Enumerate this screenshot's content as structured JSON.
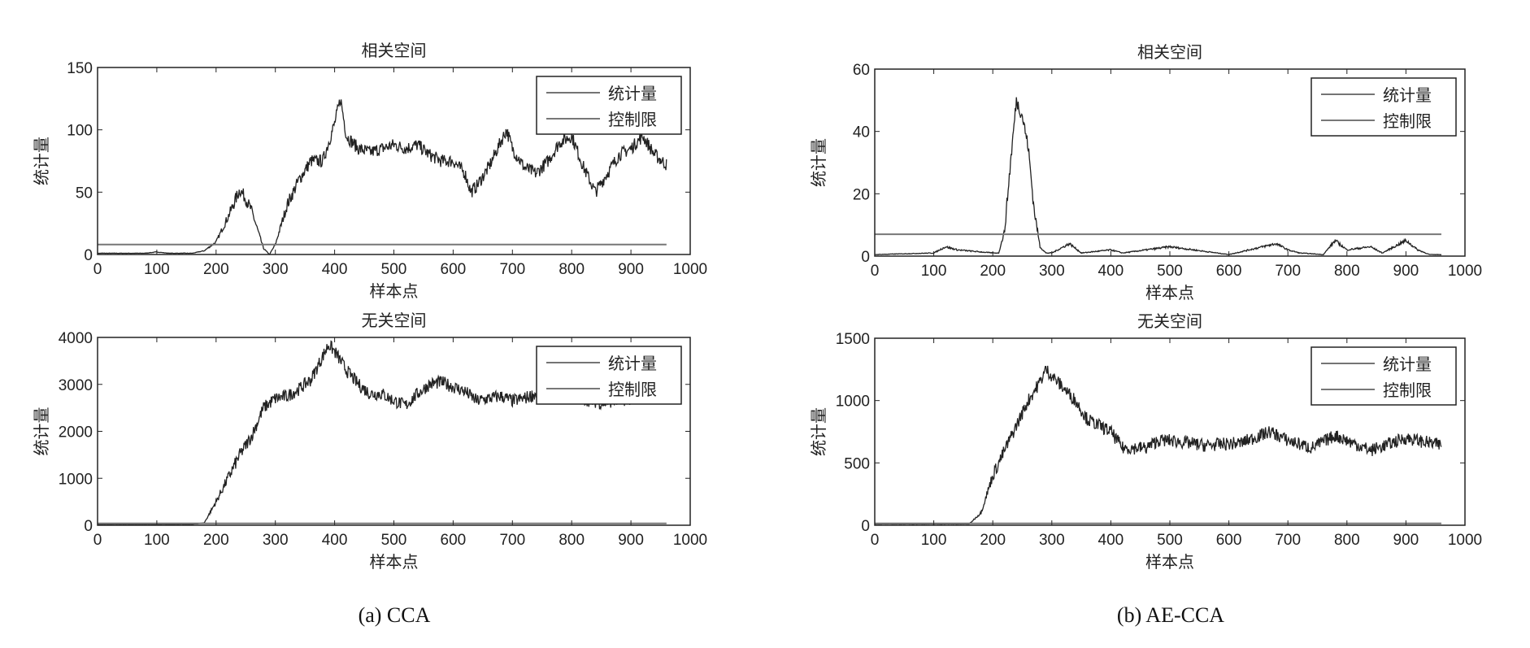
{
  "captions": [
    "(a) CCA",
    "(b) AE-CCA"
  ],
  "colors": {
    "statistic": "#222222",
    "limit": "#777777",
    "axes": "#222222"
  },
  "chart_data": [
    {
      "type": "line",
      "group": "(a) CCA",
      "title": "相关空间",
      "xlabel": "样本点",
      "ylabel": "统计量",
      "xlim": [
        0,
        1000
      ],
      "ylim": [
        0,
        150
      ],
      "xticks": [
        0,
        100,
        200,
        300,
        400,
        500,
        600,
        700,
        800,
        900,
        1000
      ],
      "yticks": [
        0,
        50,
        100,
        150
      ],
      "legend": {
        "position": "top-right",
        "entries": [
          "统计量",
          "控制限"
        ]
      },
      "series": [
        {
          "name": "统计量",
          "x": [
            0,
            20,
            40,
            60,
            80,
            100,
            120,
            140,
            160,
            180,
            200,
            220,
            240,
            250,
            260,
            280,
            290,
            300,
            320,
            340,
            360,
            380,
            400,
            410,
            420,
            440,
            460,
            480,
            500,
            520,
            540,
            560,
            580,
            600,
            620,
            630,
            640,
            660,
            680,
            690,
            700,
            720,
            740,
            760,
            780,
            800,
            820,
            840,
            860,
            880,
            900,
            920,
            940,
            960
          ],
          "y": [
            1,
            1,
            1,
            1,
            1,
            2,
            1,
            1,
            1,
            3,
            10,
            30,
            52,
            45,
            35,
            5,
            0,
            8,
            40,
            60,
            75,
            75,
            105,
            125,
            95,
            85,
            82,
            85,
            88,
            85,
            88,
            80,
            75,
            75,
            65,
            50,
            55,
            70,
            90,
            100,
            85,
            70,
            65,
            75,
            90,
            95,
            70,
            50,
            65,
            80,
            85,
            95,
            80,
            72
          ]
        },
        {
          "name": "控制限",
          "x": [
            0,
            960
          ],
          "y": [
            8,
            8
          ]
        }
      ]
    },
    {
      "type": "line",
      "group": "(a) CCA",
      "title": "无关空间",
      "xlabel": "样本点",
      "ylabel": "统计量",
      "xlim": [
        0,
        1000
      ],
      "ylim": [
        0,
        4000
      ],
      "xticks": [
        0,
        100,
        200,
        300,
        400,
        500,
        600,
        700,
        800,
        900,
        1000
      ],
      "yticks": [
        0,
        1000,
        2000,
        3000,
        4000
      ],
      "legend": {
        "position": "top-right",
        "entries": [
          "统计量",
          "控制限"
        ]
      },
      "series": [
        {
          "name": "统计量",
          "x": [
            0,
            160,
            180,
            200,
            220,
            240,
            260,
            280,
            300,
            320,
            340,
            360,
            380,
            390,
            400,
            420,
            440,
            460,
            480,
            500,
            520,
            540,
            560,
            580,
            600,
            620,
            640,
            660,
            680,
            700,
            720,
            740,
            760,
            800,
            850,
            900,
            960
          ],
          "y": [
            20,
            20,
            50,
            500,
            1000,
            1500,
            1900,
            2500,
            2700,
            2750,
            2900,
            3100,
            3600,
            3850,
            3700,
            3300,
            3000,
            2800,
            2800,
            2650,
            2550,
            2800,
            3000,
            3050,
            2950,
            2850,
            2650,
            2700,
            2750,
            2650,
            2700,
            2800,
            2800,
            2750,
            2600,
            2700,
            2750
          ]
        },
        {
          "name": "控制限",
          "x": [
            0,
            960
          ],
          "y": [
            40,
            40
          ]
        }
      ]
    },
    {
      "type": "line",
      "group": "(b) AE-CCA",
      "title": "相关空间",
      "xlabel": "样本点",
      "ylabel": "统计量",
      "xlim": [
        0,
        1000
      ],
      "ylim": [
        0,
        60
      ],
      "xticks": [
        0,
        100,
        200,
        300,
        400,
        500,
        600,
        700,
        800,
        900,
        1000
      ],
      "yticks": [
        0,
        20,
        40,
        60
      ],
      "legend": {
        "position": "top-right",
        "entries": [
          "统计量",
          "控制限"
        ]
      },
      "series": [
        {
          "name": "统计量",
          "x": [
            0,
            100,
            120,
            140,
            200,
            210,
            220,
            230,
            240,
            250,
            260,
            270,
            280,
            290,
            300,
            330,
            350,
            400,
            420,
            500,
            540,
            600,
            680,
            700,
            720,
            760,
            780,
            800,
            840,
            860,
            900,
            920,
            940,
            960
          ],
          "y": [
            0.5,
            1,
            3,
            2,
            1,
            1,
            8,
            30,
            50,
            45,
            35,
            15,
            3,
            1,
            1,
            4,
            1,
            2,
            1,
            3,
            2,
            0.5,
            4,
            2,
            1,
            0.5,
            5,
            2,
            3,
            1,
            5,
            2,
            0.5,
            0.5
          ]
        },
        {
          "name": "控制限",
          "x": [
            0,
            960
          ],
          "y": [
            7,
            7
          ]
        }
      ]
    },
    {
      "type": "line",
      "group": "(b) AE-CCA",
      "title": "无关空间",
      "xlabel": "样本点",
      "ylabel": "统计量",
      "xlim": [
        0,
        1000
      ],
      "ylim": [
        0,
        1500
      ],
      "xticks": [
        0,
        100,
        200,
        300,
        400,
        500,
        600,
        700,
        800,
        900,
        1000
      ],
      "yticks": [
        0,
        500,
        1000,
        1500
      ],
      "legend": {
        "position": "top-right",
        "entries": [
          "统计量",
          "控制限"
        ]
      },
      "series": [
        {
          "name": "统计量",
          "x": [
            0,
            160,
            180,
            200,
            220,
            240,
            260,
            280,
            290,
            300,
            320,
            340,
            360,
            380,
            400,
            420,
            440,
            460,
            480,
            500,
            560,
            620,
            670,
            700,
            740,
            780,
            840,
            900,
            960
          ],
          "y": [
            10,
            10,
            100,
            400,
            600,
            800,
            1000,
            1150,
            1250,
            1200,
            1100,
            1000,
            850,
            800,
            750,
            620,
            620,
            620,
            680,
            680,
            640,
            660,
            750,
            680,
            620,
            720,
            600,
            700,
            640
          ]
        },
        {
          "name": "控制限",
          "x": [
            0,
            960
          ],
          "y": [
            15,
            15
          ]
        }
      ]
    }
  ]
}
